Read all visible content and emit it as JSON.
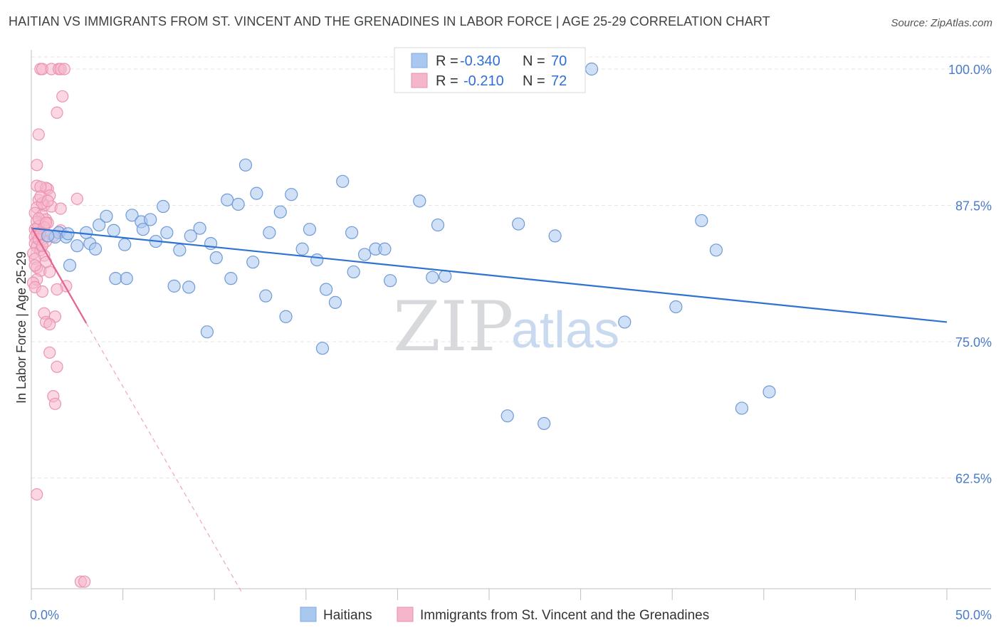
{
  "header": {
    "title": "HAITIAN VS IMMIGRANTS FROM ST. VINCENT AND THE GRENADINES IN LABOR FORCE | AGE 25-29 CORRELATION CHART",
    "source": "Source: ZipAtlas.com"
  },
  "watermark": {
    "zip": "ZIP",
    "atlas": "atlas"
  },
  "legend_top": [
    {
      "r_label": "R =",
      "r_value": "-0.340",
      "n_label": "N =",
      "n_value": "70"
    },
    {
      "r_label": "R =",
      "r_value": "-0.210",
      "n_label": "N =",
      "n_value": "72"
    }
  ],
  "chart_data": {
    "type": "scatter",
    "ylabel": "In Labor Force | Age 25-29",
    "xlim": [
      0,
      50
    ],
    "ylim": [
      52,
      102
    ],
    "y_ticks": [
      {
        "value": 100,
        "label": "100.0%"
      },
      {
        "value": 87.5,
        "label": "87.5%"
      },
      {
        "value": 75,
        "label": "75.0%"
      },
      {
        "value": 62.5,
        "label": "62.5%"
      }
    ],
    "x_tick_labels": [
      {
        "value": 0,
        "label": "0.0%"
      },
      {
        "value": 50,
        "label": "50.0%"
      }
    ],
    "x_minor_ticks": [
      0,
      5,
      10,
      15,
      20,
      25,
      30,
      35,
      40,
      45,
      50
    ],
    "grid": true,
    "colors": {
      "haitians": "#a9c8f0",
      "haitians_line": "#2e72d2",
      "svg_imm": "#f5b6cb",
      "svg_line": "#e4628d"
    },
    "series": [
      {
        "name": "Haitians",
        "points": [
          [
            1.5,
            85.0
          ],
          [
            2.1,
            82.0
          ],
          [
            2.5,
            83.8
          ],
          [
            3.2,
            84.0
          ],
          [
            3.7,
            85.7
          ],
          [
            3.5,
            83.5
          ],
          [
            4.1,
            86.5
          ],
          [
            4.6,
            80.8
          ],
          [
            4.5,
            85.2
          ],
          [
            5.2,
            80.8
          ],
          [
            5.1,
            83.9
          ],
          [
            5.5,
            86.6
          ],
          [
            6.0,
            86.0
          ],
          [
            6.1,
            85.3
          ],
          [
            6.5,
            86.2
          ],
          [
            6.8,
            84.2
          ],
          [
            7.2,
            87.4
          ],
          [
            7.4,
            85.0
          ],
          [
            7.8,
            80.1
          ],
          [
            8.1,
            83.4
          ],
          [
            8.6,
            80.0
          ],
          [
            8.7,
            84.7
          ],
          [
            9.2,
            85.4
          ],
          [
            9.6,
            75.9
          ],
          [
            9.8,
            84.0
          ],
          [
            10.1,
            82.7
          ],
          [
            10.7,
            88.0
          ],
          [
            10.9,
            80.8
          ],
          [
            11.3,
            87.6
          ],
          [
            11.7,
            91.2
          ],
          [
            12.1,
            82.3
          ],
          [
            12.3,
            88.6
          ],
          [
            12.8,
            79.2
          ],
          [
            13.0,
            85.0
          ],
          [
            13.6,
            86.9
          ],
          [
            13.9,
            77.3
          ],
          [
            14.2,
            88.5
          ],
          [
            14.8,
            83.5
          ],
          [
            15.2,
            85.3
          ],
          [
            15.6,
            82.5
          ],
          [
            15.9,
            74.4
          ],
          [
            16.1,
            79.8
          ],
          [
            16.6,
            78.6
          ],
          [
            17.0,
            89.7
          ],
          [
            17.5,
            85.0
          ],
          [
            17.6,
            81.4
          ],
          [
            18.2,
            83.0
          ],
          [
            18.8,
            83.5
          ],
          [
            19.3,
            83.5
          ],
          [
            19.6,
            80.6
          ],
          [
            21.2,
            87.9
          ],
          [
            21.9,
            80.9
          ],
          [
            22.2,
            85.7
          ],
          [
            22.6,
            81.0
          ],
          [
            26.0,
            68.2
          ],
          [
            26.6,
            85.8
          ],
          [
            28.0,
            67.5
          ],
          [
            28.6,
            84.7
          ],
          [
            30.6,
            100.0
          ],
          [
            32.4,
            76.8
          ],
          [
            35.2,
            78.2
          ],
          [
            36.6,
            86.1
          ],
          [
            37.4,
            83.4
          ],
          [
            38.8,
            68.9
          ],
          [
            40.3,
            70.4
          ],
          [
            1.3,
            84.6
          ],
          [
            1.9,
            84.6
          ],
          [
            2.0,
            84.9
          ],
          [
            3.0,
            85.0
          ],
          [
            0.9,
            84.7
          ]
        ],
        "trend": {
          "x": [
            0,
            50
          ],
          "y": [
            85.4,
            76.8
          ]
        }
      },
      {
        "name": "Immigrants from St. Vincent and the Grenadines",
        "points": [
          [
            0.5,
            100.0
          ],
          [
            0.6,
            100.0
          ],
          [
            1.1,
            100.0
          ],
          [
            1.5,
            100.0
          ],
          [
            1.6,
            100.0
          ],
          [
            1.8,
            100.0
          ],
          [
            1.7,
            97.5
          ],
          [
            1.4,
            96.0
          ],
          [
            0.4,
            94.0
          ],
          [
            0.3,
            91.2
          ],
          [
            0.3,
            89.3
          ],
          [
            0.9,
            89.0
          ],
          [
            0.8,
            89.1
          ],
          [
            1.0,
            88.4
          ],
          [
            2.5,
            88.1
          ],
          [
            0.4,
            88.0
          ],
          [
            0.7,
            87.5
          ],
          [
            1.1,
            87.4
          ],
          [
            0.3,
            87.3
          ],
          [
            1.6,
            87.2
          ],
          [
            0.2,
            86.8
          ],
          [
            0.6,
            86.6
          ],
          [
            0.8,
            86.2
          ],
          [
            0.3,
            86.0
          ],
          [
            0.4,
            85.6
          ],
          [
            0.2,
            85.3
          ],
          [
            0.5,
            85.0
          ],
          [
            1.6,
            85.2
          ],
          [
            0.3,
            84.9
          ],
          [
            0.2,
            84.6
          ],
          [
            0.6,
            84.4
          ],
          [
            0.2,
            84.0
          ],
          [
            0.8,
            84.2
          ],
          [
            0.3,
            83.7
          ],
          [
            0.5,
            83.4
          ],
          [
            0.1,
            83.1
          ],
          [
            0.7,
            82.9
          ],
          [
            0.2,
            82.6
          ],
          [
            0.8,
            82.3
          ],
          [
            0.3,
            81.8
          ],
          [
            0.5,
            81.5
          ],
          [
            1.0,
            81.4
          ],
          [
            0.3,
            80.7
          ],
          [
            0.1,
            80.4
          ],
          [
            0.2,
            80.0
          ],
          [
            1.9,
            80.1
          ],
          [
            0.6,
            79.6
          ],
          [
            1.4,
            79.8
          ],
          [
            0.7,
            77.6
          ],
          [
            1.3,
            77.3
          ],
          [
            0.8,
            76.8
          ],
          [
            1.0,
            76.6
          ],
          [
            1.0,
            74.0
          ],
          [
            1.4,
            72.7
          ],
          [
            1.2,
            70.0
          ],
          [
            1.3,
            69.3
          ],
          [
            0.3,
            61.0
          ],
          [
            2.7,
            53.0
          ],
          [
            2.9,
            53.0
          ],
          [
            0.9,
            85.9
          ],
          [
            0.7,
            85.5
          ],
          [
            0.4,
            84.4
          ],
          [
            0.4,
            86.3
          ],
          [
            1.2,
            84.7
          ],
          [
            0.6,
            87.7
          ],
          [
            0.2,
            82.0
          ],
          [
            0.8,
            85.9
          ],
          [
            0.6,
            83.8
          ],
          [
            0.5,
            89.2
          ],
          [
            0.5,
            88.3
          ],
          [
            0.9,
            87.9
          ],
          [
            0.5,
            84.9
          ]
        ],
        "trend_solid": {
          "x": [
            0,
            3.0
          ],
          "y": [
            85.5,
            76.7
          ]
        },
        "trend_dashed": {
          "x": [
            3.0,
            11.5
          ],
          "y": [
            76.7,
            52.0
          ]
        }
      }
    ]
  }
}
